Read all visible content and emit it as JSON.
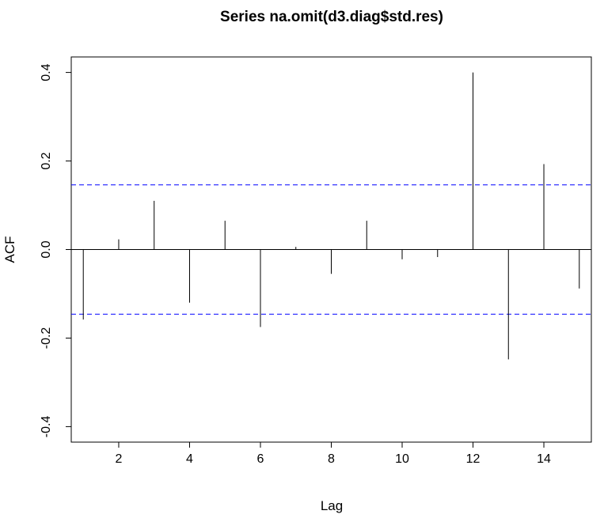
{
  "chart_data": {
    "type": "bar",
    "title": "Series  na.omit(d3.diag$std.res)",
    "xlabel": "Lag",
    "ylabel": "ACF",
    "xlim": [
      0.66,
      15.34
    ],
    "ylim": [
      -0.435,
      0.435
    ],
    "x_ticks": [
      2,
      4,
      6,
      8,
      10,
      12,
      14
    ],
    "x_tick_labels": [
      "2",
      "4",
      "6",
      "8",
      "10",
      "12",
      "14"
    ],
    "y_ticks": [
      -0.4,
      -0.2,
      0.0,
      0.2,
      0.4
    ],
    "y_tick_labels": [
      "-0.4",
      "-0.2",
      "0.0",
      "0.2",
      "0.4"
    ],
    "lags": [
      1,
      2,
      3,
      4,
      5,
      6,
      7,
      8,
      9,
      10,
      11,
      12,
      13,
      14,
      15
    ],
    "acf": [
      -0.158,
      0.023,
      0.11,
      -0.12,
      0.065,
      -0.175,
      0.006,
      -0.055,
      0.065,
      -0.022,
      -0.017,
      0.4,
      -0.248,
      0.193,
      -0.088
    ],
    "confidence_limit": 0.146,
    "colors": {
      "spikes": "#000000",
      "confidence_lines": "#0000ff",
      "axes": "#000000"
    },
    "grid": false
  }
}
